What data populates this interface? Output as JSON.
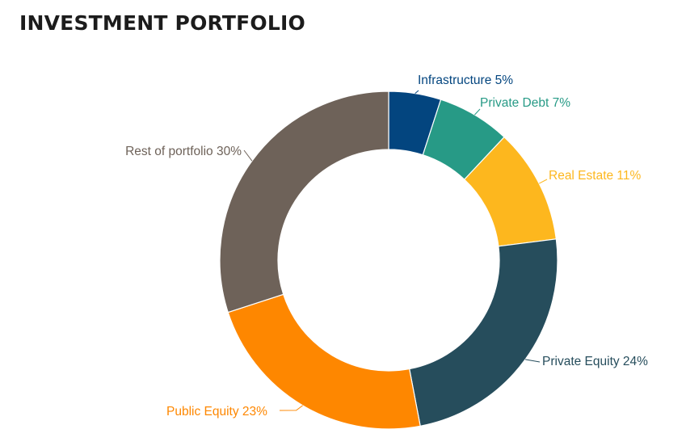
{
  "title": "INVESTMENT PORTFOLIO",
  "chart_data": {
    "type": "pie",
    "variant": "donut",
    "title": "INVESTMENT PORTFOLIO",
    "slices": [
      {
        "label": "Infrastructure",
        "value": 5,
        "display": "Infrastructure 5%",
        "color": "#03457f",
        "label_color": "#03457f"
      },
      {
        "label": "Private Debt",
        "value": 7,
        "display": "Private Debt 7%",
        "color": "#279a86",
        "label_color": "#279a86"
      },
      {
        "label": "Real Estate",
        "value": 11,
        "display": "Real Estate 11%",
        "color": "#fdb71e",
        "label_color": "#fdb71e"
      },
      {
        "label": "Private Equity",
        "value": 24,
        "display": "Private Equity 24%",
        "color": "#264d5c",
        "label_color": "#264d5c"
      },
      {
        "label": "Public Equity",
        "value": 23,
        "display": "Public Equity 23%",
        "color": "#fe8700",
        "label_color": "#fe8700"
      },
      {
        "label": "Rest of portfolio",
        "value": 30,
        "display": "Rest of portfolio 30%",
        "color": "#6e6259",
        "label_color": "#6e6259"
      }
    ],
    "start_angle": "12 o'clock",
    "direction": "clockwise",
    "legend": "none"
  }
}
